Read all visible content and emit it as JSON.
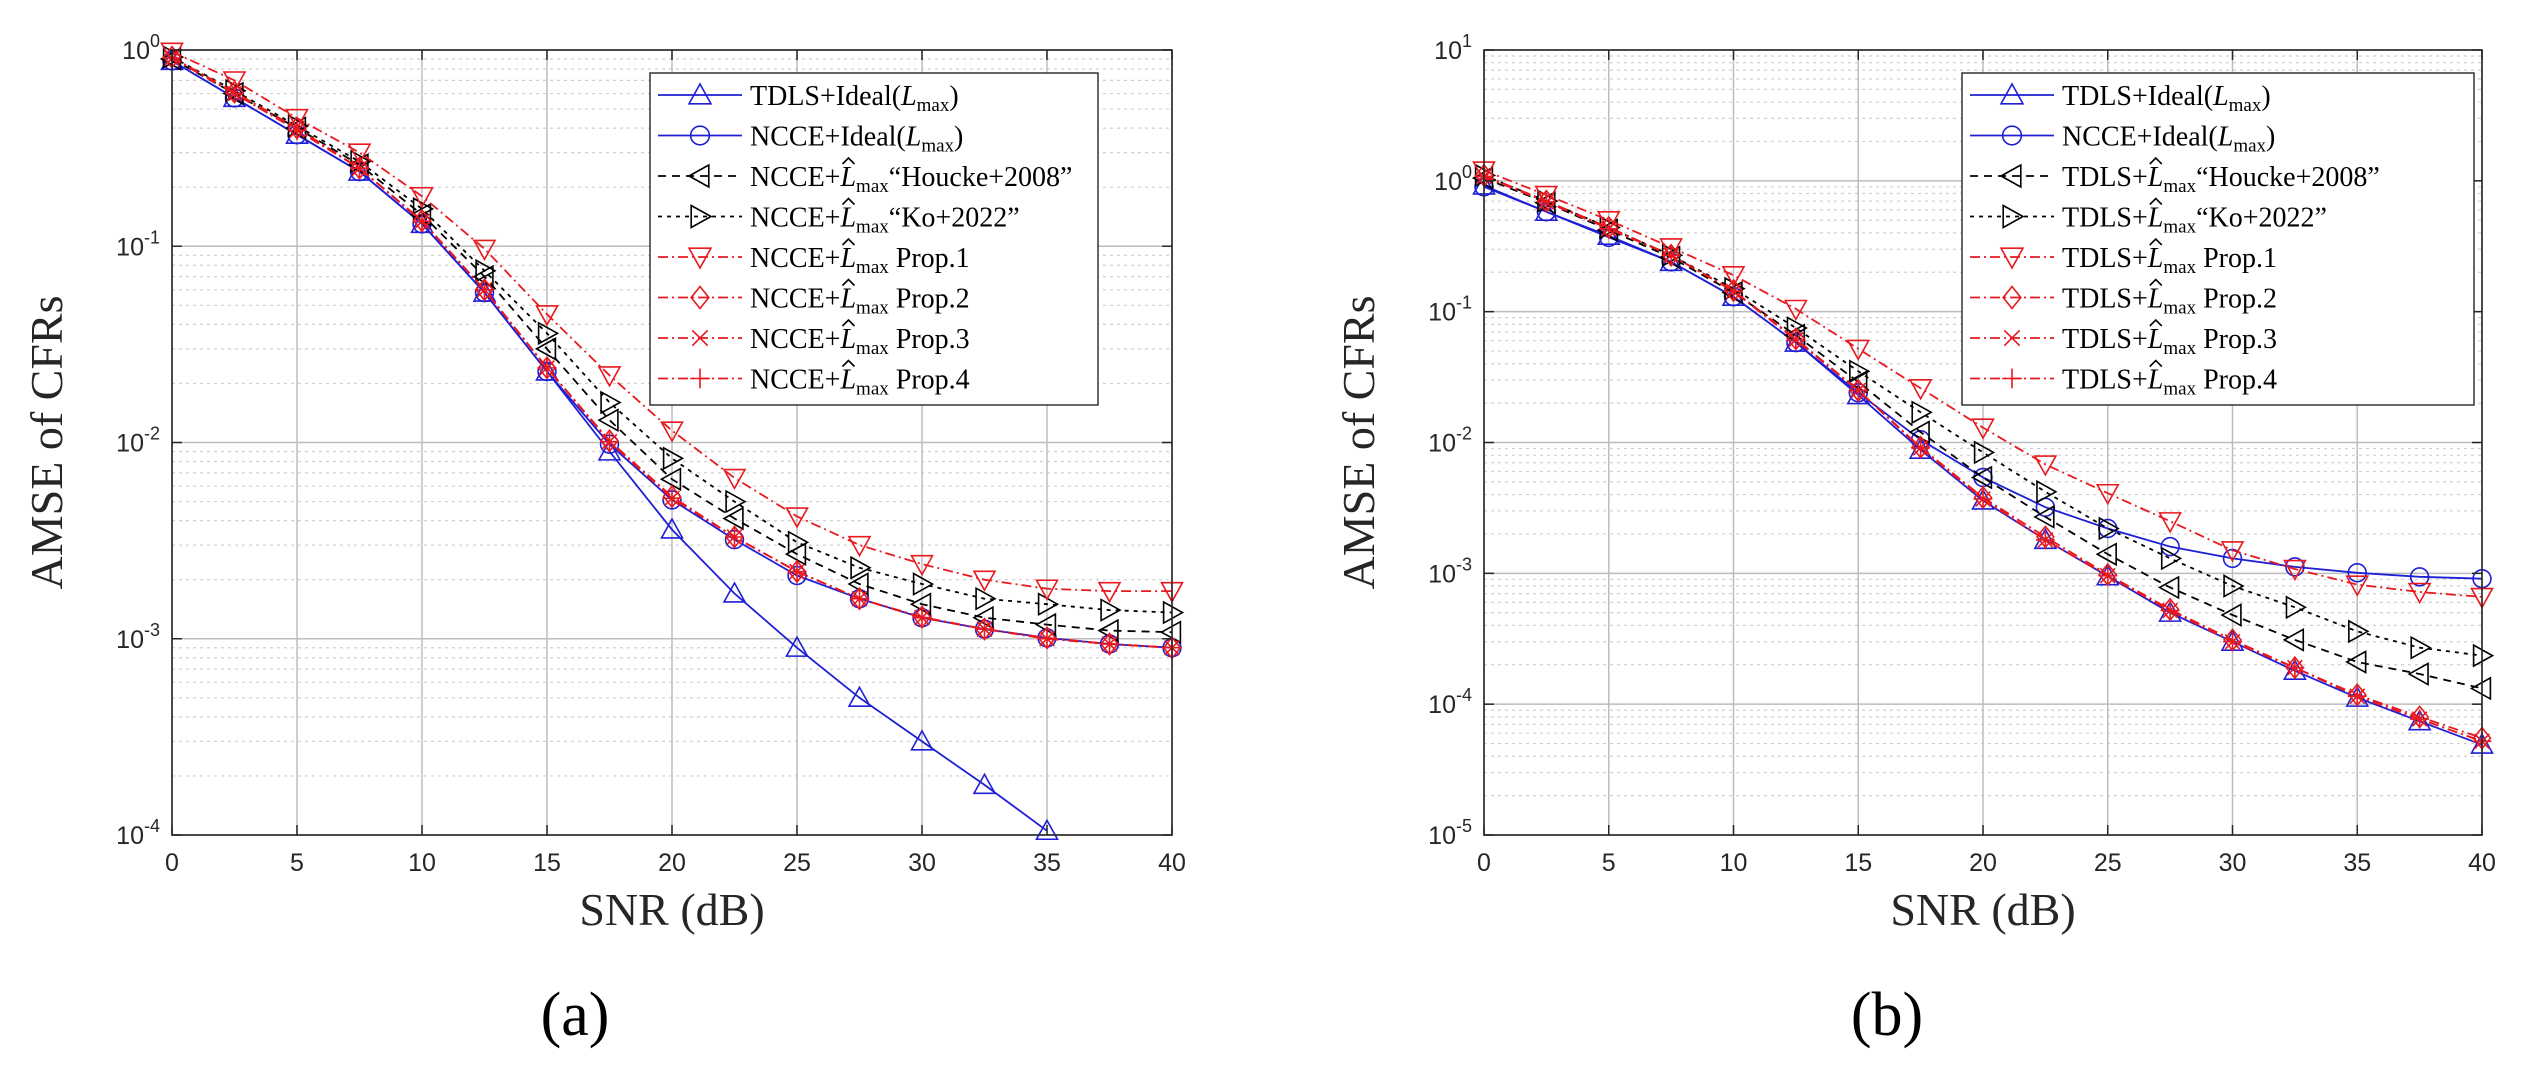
{
  "figure": {
    "panel_labels": [
      "(a)",
      "(b)"
    ]
  },
  "chart_data": [
    {
      "type": "line",
      "panel": "(a)",
      "title": "",
      "xlabel": "SNR (dB)",
      "ylabel": "AMSE of CFRs",
      "yscale": "log",
      "xlim": [
        0,
        40
      ],
      "ylim_exp": [
        -4,
        0
      ],
      "xticks": [
        "0",
        "5",
        "10",
        "15",
        "20",
        "25",
        "30",
        "35",
        "40"
      ],
      "yticks": [
        {
          "base": "10",
          "exp": "0"
        },
        {
          "base": "10",
          "exp": "-1"
        },
        {
          "base": "10",
          "exp": "-2"
        },
        {
          "base": "10",
          "exp": "-3"
        },
        {
          "base": "10",
          "exp": "-4"
        }
      ],
      "grid": true,
      "legend_position": "top-right",
      "series": [
        {
          "name_main": "TDLS+Ideal(",
          "name_l": "L",
          "name_sub": "max",
          "name_tail": ")",
          "name_hat": false,
          "color": "#1f1fd6",
          "dash": "",
          "marker": "triangle-up",
          "x": [
            0,
            2.5,
            5,
            7.5,
            10,
            12.5,
            15,
            17.5,
            20,
            22.5,
            25,
            27.5,
            30,
            32.5,
            35
          ],
          "y": [
            0.88,
            0.57,
            0.37,
            0.24,
            0.13,
            0.058,
            0.023,
            0.009,
            0.0036,
            0.0017,
            0.0009,
            0.0005,
            0.0003,
            0.00018,
            0.000105
          ]
        },
        {
          "name_main": "NCCE+Ideal(",
          "name_l": "L",
          "name_sub": "max",
          "name_tail": ")",
          "name_hat": false,
          "color": "#1f1fd6",
          "dash": "",
          "marker": "circle",
          "x": [
            0,
            2.5,
            5,
            7.5,
            10,
            12.5,
            15,
            17.5,
            20,
            22.5,
            25,
            27.5,
            30,
            32.5,
            35,
            37.5,
            40
          ],
          "y": [
            0.88,
            0.57,
            0.37,
            0.24,
            0.13,
            0.058,
            0.023,
            0.0098,
            0.0051,
            0.0032,
            0.0021,
            0.0016,
            0.00128,
            0.00112,
            0.00101,
            0.00094,
            0.0009
          ]
        },
        {
          "name_main": "NCCE+",
          "name_l": "L",
          "name_sub": "max",
          "name_tail": "“Houcke+2008”",
          "name_hat": true,
          "color": "#000000",
          "dash": "8,6",
          "marker": "triangle-left",
          "x": [
            0,
            2.5,
            5,
            7.5,
            10,
            12.5,
            15,
            17.5,
            20,
            22.5,
            25,
            27.5,
            30,
            32.5,
            35,
            37.5,
            40
          ],
          "y": [
            0.9,
            0.6,
            0.4,
            0.26,
            0.145,
            0.07,
            0.03,
            0.013,
            0.0065,
            0.0041,
            0.0027,
            0.0019,
            0.0015,
            0.00128,
            0.00118,
            0.0011,
            0.00108
          ]
        },
        {
          "name_main": "NCCE+",
          "name_l": "L",
          "name_sub": "max",
          "name_tail": "“Ko+2022”",
          "name_hat": true,
          "color": "#000000",
          "dash": "4,5",
          "marker": "triangle-right",
          "x": [
            0,
            2.5,
            5,
            7.5,
            10,
            12.5,
            15,
            17.5,
            20,
            22.5,
            25,
            27.5,
            30,
            32.5,
            35,
            37.5,
            40
          ],
          "y": [
            0.92,
            0.62,
            0.41,
            0.27,
            0.155,
            0.075,
            0.036,
            0.016,
            0.0083,
            0.005,
            0.0031,
            0.0023,
            0.0019,
            0.0016,
            0.0015,
            0.0014,
            0.00136
          ]
        },
        {
          "name_main": "NCCE+",
          "name_l": "L",
          "name_sub": "max",
          "name_tail": " Prop.1",
          "name_hat": true,
          "color": "#e8191f",
          "dash": "10,4,2,4",
          "marker": "triangle-down",
          "x": [
            0,
            2.5,
            5,
            7.5,
            10,
            12.5,
            15,
            17.5,
            20,
            22.5,
            25,
            27.5,
            30,
            32.5,
            35,
            37.5,
            40
          ],
          "y": [
            0.98,
            0.7,
            0.45,
            0.3,
            0.18,
            0.097,
            0.045,
            0.022,
            0.0115,
            0.0066,
            0.0042,
            0.003,
            0.0024,
            0.002,
            0.0018,
            0.00175,
            0.00175
          ]
        },
        {
          "name_main": "NCCE+",
          "name_l": "L",
          "name_sub": "max",
          "name_tail": " Prop.2",
          "name_hat": true,
          "color": "#e8191f",
          "dash": "10,4,2,4",
          "marker": "diamond",
          "x": [
            0,
            2.5,
            5,
            7.5,
            10,
            12.5,
            15,
            17.5,
            20,
            22.5,
            25,
            27.5,
            30,
            32.5,
            35,
            37.5,
            40
          ],
          "y": [
            0.92,
            0.61,
            0.4,
            0.25,
            0.135,
            0.06,
            0.024,
            0.0102,
            0.0053,
            0.0033,
            0.0022,
            0.0016,
            0.00129,
            0.00112,
            0.00101,
            0.00094,
            0.0009
          ]
        },
        {
          "name_main": "NCCE+",
          "name_l": "L",
          "name_sub": "max",
          "name_tail": " Prop.3",
          "name_hat": true,
          "color": "#e8191f",
          "dash": "10,4,2,4",
          "marker": "x",
          "x": [
            0,
            2.5,
            5,
            7.5,
            10,
            12.5,
            15,
            17.5,
            20,
            22.5,
            25,
            27.5,
            30,
            32.5,
            35,
            37.5,
            40
          ],
          "y": [
            0.91,
            0.6,
            0.39,
            0.25,
            0.134,
            0.06,
            0.024,
            0.0101,
            0.0052,
            0.0033,
            0.0022,
            0.0016,
            0.00128,
            0.00112,
            0.001,
            0.00094,
            0.0009
          ]
        },
        {
          "name_main": "NCCE+",
          "name_l": "L",
          "name_sub": "max",
          "name_tail": " Prop.4",
          "name_hat": true,
          "color": "#e8191f",
          "dash": "10,4,2,4",
          "marker": "plus",
          "x": [
            0,
            2.5,
            5,
            7.5,
            10,
            12.5,
            15,
            17.5,
            20,
            22.5,
            25,
            27.5,
            30,
            32.5,
            35,
            37.5,
            40
          ],
          "y": [
            0.91,
            0.6,
            0.39,
            0.25,
            0.134,
            0.06,
            0.024,
            0.0101,
            0.0052,
            0.0033,
            0.0022,
            0.0016,
            0.00128,
            0.00112,
            0.001,
            0.00094,
            0.0009
          ]
        }
      ]
    },
    {
      "type": "line",
      "panel": "(b)",
      "title": "",
      "xlabel": "SNR (dB)",
      "ylabel": "AMSE of CFRs",
      "yscale": "log",
      "xlim": [
        0,
        40
      ],
      "ylim_exp": [
        -5,
        1
      ],
      "xticks": [
        "0",
        "5",
        "10",
        "15",
        "20",
        "25",
        "30",
        "35",
        "40"
      ],
      "yticks": [
        {
          "base": "10",
          "exp": "1"
        },
        {
          "base": "10",
          "exp": "0"
        },
        {
          "base": "10",
          "exp": "-1"
        },
        {
          "base": "10",
          "exp": "-2"
        },
        {
          "base": "10",
          "exp": "-3"
        },
        {
          "base": "10",
          "exp": "-4"
        },
        {
          "base": "10",
          "exp": "-5"
        }
      ],
      "grid": true,
      "legend_position": "top-right",
      "series": [
        {
          "name_main": "TDLS+Ideal(",
          "name_l": "L",
          "name_sub": "max",
          "name_tail": ")",
          "name_hat": false,
          "color": "#1f1fd6",
          "dash": "",
          "marker": "triangle-up",
          "x": [
            0,
            2.5,
            5,
            7.5,
            10,
            12.5,
            15,
            17.5,
            20,
            22.5,
            25,
            27.5,
            30,
            32.5,
            35,
            37.5,
            40
          ],
          "y": [
            0.92,
            0.58,
            0.38,
            0.24,
            0.13,
            0.058,
            0.023,
            0.0088,
            0.0036,
            0.0018,
            0.00095,
            0.0005,
            0.0003,
            0.00018,
            0.000112,
            7.4e-05,
            4.9e-05
          ]
        },
        {
          "name_main": "NCCE+Ideal(",
          "name_l": "L",
          "name_sub": "max",
          "name_tail": ")",
          "name_hat": false,
          "color": "#1f1fd6",
          "dash": "",
          "marker": "circle",
          "x": [
            0,
            2.5,
            5,
            7.5,
            10,
            12.5,
            15,
            17.5,
            20,
            22.5,
            25,
            27.5,
            30,
            32.5,
            35,
            37.5,
            40
          ],
          "y": [
            0.9,
            0.58,
            0.37,
            0.24,
            0.13,
            0.058,
            0.024,
            0.0105,
            0.0054,
            0.0032,
            0.0022,
            0.0016,
            0.0013,
            0.00112,
            0.00101,
            0.00094,
            0.00091
          ]
        },
        {
          "name_main": "TDLS+",
          "name_l": "L",
          "name_sub": "max",
          "name_tail": "“Houcke+2008”",
          "name_hat": true,
          "color": "#000000",
          "dash": "8,6",
          "marker": "triangle-left",
          "x": [
            0,
            2.5,
            5,
            7.5,
            10,
            12.5,
            15,
            17.5,
            20,
            22.5,
            25,
            27.5,
            30,
            32.5,
            35,
            37.5,
            40
          ],
          "y": [
            1.05,
            0.68,
            0.42,
            0.26,
            0.14,
            0.066,
            0.029,
            0.012,
            0.0054,
            0.0027,
            0.0014,
            0.00078,
            0.00048,
            0.00031,
            0.00021,
            0.00017,
            0.000132
          ]
        },
        {
          "name_main": "TDLS+",
          "name_l": "L",
          "name_sub": "max",
          "name_tail": "“Ko+2022”",
          "name_hat": true,
          "color": "#000000",
          "dash": "4,5",
          "marker": "triangle-right",
          "x": [
            0,
            2.5,
            5,
            7.5,
            10,
            12.5,
            15,
            17.5,
            20,
            22.5,
            25,
            27.5,
            30,
            32.5,
            35,
            37.5,
            40
          ],
          "y": [
            1.1,
            0.7,
            0.44,
            0.27,
            0.15,
            0.075,
            0.035,
            0.017,
            0.0084,
            0.0042,
            0.0022,
            0.0013,
            0.0008,
            0.00055,
            0.00036,
            0.00027,
            0.000235
          ]
        },
        {
          "name_main": "TDLS+",
          "name_l": "L",
          "name_sub": "max",
          "name_tail": " Prop.1",
          "name_hat": true,
          "color": "#e8191f",
          "dash": "10,4,2,4",
          "marker": "triangle-down",
          "x": [
            0,
            2.5,
            5,
            7.5,
            10,
            12.5,
            15,
            17.5,
            20,
            22.5,
            25,
            27.5,
            30,
            32.5,
            35,
            37.5,
            40
          ],
          "y": [
            1.2,
            0.78,
            0.5,
            0.31,
            0.19,
            0.105,
            0.052,
            0.026,
            0.013,
            0.0068,
            0.0041,
            0.0025,
            0.0015,
            0.00108,
            0.00082,
            0.00072,
            0.00066
          ]
        },
        {
          "name_main": "TDLS+",
          "name_l": "L",
          "name_sub": "max",
          "name_tail": " Prop.2",
          "name_hat": true,
          "color": "#e8191f",
          "dash": "10,4,2,4",
          "marker": "diamond",
          "x": [
            0,
            2.5,
            5,
            7.5,
            10,
            12.5,
            15,
            17.5,
            20,
            22.5,
            25,
            27.5,
            30,
            32.5,
            35,
            37.5,
            40
          ],
          "y": [
            1.1,
            0.7,
            0.44,
            0.27,
            0.145,
            0.062,
            0.025,
            0.0092,
            0.0038,
            0.0019,
            0.00098,
            0.00053,
            0.00031,
            0.00019,
            0.000118,
            8e-05,
            5.5e-05
          ]
        },
        {
          "name_main": "TDLS+",
          "name_l": "L",
          "name_sub": "max",
          "name_tail": " Prop.3",
          "name_hat": true,
          "color": "#e8191f",
          "dash": "10,4,2,4",
          "marker": "x",
          "x": [
            0,
            2.5,
            5,
            7.5,
            10,
            12.5,
            15,
            17.5,
            20,
            22.5,
            25,
            27.5,
            30,
            32.5,
            35,
            37.5,
            40
          ],
          "y": [
            1.08,
            0.69,
            0.43,
            0.27,
            0.143,
            0.061,
            0.025,
            0.0091,
            0.0037,
            0.0018,
            0.00096,
            0.00052,
            0.0003,
            0.00019,
            0.000115,
            7.7e-05,
            5.2e-05
          ]
        },
        {
          "name_main": "TDLS+",
          "name_l": "L",
          "name_sub": "max",
          "name_tail": " Prop.4",
          "name_hat": true,
          "color": "#e8191f",
          "dash": "10,4,2,4",
          "marker": "plus",
          "x": [
            0,
            2.5,
            5,
            7.5,
            10,
            12.5,
            15,
            17.5,
            20,
            22.5,
            25,
            27.5,
            30,
            32.5,
            35,
            37.5,
            40
          ],
          "y": [
            1.08,
            0.69,
            0.43,
            0.27,
            0.143,
            0.061,
            0.025,
            0.0091,
            0.0037,
            0.0018,
            0.00096,
            0.00052,
            0.0003,
            0.00019,
            0.000115,
            7.7e-05,
            5.2e-05
          ]
        }
      ]
    }
  ]
}
